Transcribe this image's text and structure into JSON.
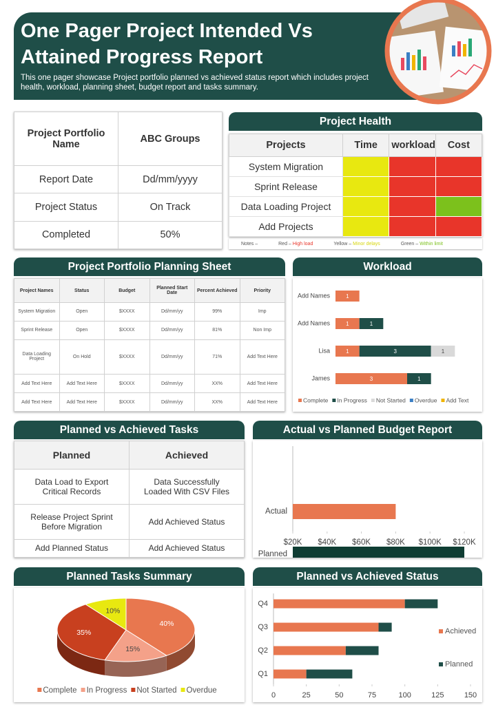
{
  "header": {
    "title": "One Pager Project Intended Vs Attained Progress Report",
    "subtitle": "This one pager showcase Project portfolio planned vs achieved status report which includes project health, workload, planning sheet, budget report and tasks summary."
  },
  "portfolio": {
    "rows": [
      [
        "Project Portfolio Name",
        "ABC Groups"
      ],
      [
        "Report Date",
        "Dd/mm/yyyy"
      ],
      [
        "Project Status",
        "On Track"
      ],
      [
        "Completed",
        "50%"
      ]
    ]
  },
  "health": {
    "title": "Project Health",
    "columns": [
      "Projects",
      "Time",
      "workload",
      "Cost"
    ],
    "rows": [
      {
        "project": "System Migration",
        "status": [
          "#e8e810",
          "#e8352a",
          "#e8352a"
        ]
      },
      {
        "project": "Sprint Release",
        "status": [
          "#e8e810",
          "#e8352a",
          "#e8352a"
        ]
      },
      {
        "project": "Data Loading Project",
        "status": [
          "#e8e810",
          "#e8352a",
          "#7cc11c"
        ]
      },
      {
        "project": "Add Projects",
        "status": [
          "#e8e810",
          "#e8352a",
          "#e8352a"
        ]
      }
    ],
    "notes": {
      "label": "Notes –",
      "items": [
        {
          "key": "Red –",
          "meaning": "High load",
          "color": "#e8352a"
        },
        {
          "key": "Yellow –",
          "meaning": "Minor delays",
          "color": "#d6d60a"
        },
        {
          "key": "Green –",
          "meaning": "Within limit",
          "color": "#7cc11c"
        }
      ]
    }
  },
  "planning": {
    "title": "Project Portfolio Planning Sheet",
    "columns": [
      "Project Names",
      "Status",
      "Budget",
      "Planned Start Date",
      "Percent Achieved",
      "Priority"
    ],
    "rows": [
      [
        "System Migration",
        "Open",
        "$XXXX",
        "Dd/mm/yy",
        "99%",
        "Imp"
      ],
      [
        "Sprint Release",
        "Open",
        "$XXXX",
        "Dd/mm/yy",
        "81%",
        "Non Imp"
      ],
      [
        "Data Loading Project",
        "On Hold",
        "$XXXX",
        "Dd/mm/yy",
        "71%",
        "Add Text Here"
      ],
      [
        "Add Text Here",
        "Add Text Here",
        "$XXXX",
        "Dd/mm/yy",
        "XX%",
        "Add Text Here"
      ],
      [
        "Add Text Here",
        "Add Text Here",
        "$XXXX",
        "Dd/mm/yy",
        "XX%",
        "Add Text Here"
      ]
    ]
  },
  "tasks": {
    "title": "Planned vs Achieved Tasks",
    "columns": [
      "Planned",
      "Achieved"
    ],
    "rows": [
      [
        "Data Load to Export Critical Records",
        "Data Successfully Loaded With CSV Files"
      ],
      [
        "Release Project Sprint Before Migration",
        "Add Achieved Status"
      ],
      [
        "Add Planned Status",
        "Add Achieved Status"
      ]
    ]
  },
  "chart_data": [
    {
      "type": "bar",
      "orientation": "horizontal",
      "stacked": true,
      "title": "Workload",
      "categories": [
        "James",
        "Lisa",
        "Add Names",
        "Add Names"
      ],
      "series": [
        {
          "name": "Complete",
          "color": "#e8774f",
          "values": [
            3,
            1,
            1,
            1
          ]
        },
        {
          "name": "In Progress",
          "color": "#1f4e48",
          "values": [
            1,
            3,
            1,
            null
          ]
        },
        {
          "name": "Not Started",
          "color": "#d9d9d9",
          "values": [
            null,
            1,
            null,
            null
          ]
        },
        {
          "name": "Overdue",
          "color": "#3b7fc4",
          "values": [
            null,
            null,
            null,
            null
          ]
        },
        {
          "name": "Add Text",
          "color": "#f0b400",
          "values": [
            null,
            null,
            null,
            null
          ]
        }
      ],
      "xlim": [
        0,
        6
      ],
      "legend": "bottom"
    },
    {
      "type": "bar",
      "orientation": "horizontal",
      "title": "Actual vs Planned Budget Report",
      "categories": [
        "Actual",
        "Planned"
      ],
      "values": [
        80000,
        120000
      ],
      "colors": [
        "#e8774f",
        "#0f3d33"
      ],
      "xlim": [
        20000,
        120000
      ],
      "xticks": [
        {
          "value": 20000,
          "label": "$20K"
        },
        {
          "value": 40000,
          "label": "$40K"
        },
        {
          "value": 60000,
          "label": "$60K"
        },
        {
          "value": 80000,
          "label": "$80K"
        },
        {
          "value": 100000,
          "label": "$100K"
        },
        {
          "value": 120000,
          "label": "$120K"
        }
      ]
    },
    {
      "type": "pie",
      "title": "Planned Tasks Summary",
      "categories": [
        "Complete",
        "In Progress",
        "Not Started",
        "Overdue"
      ],
      "values": [
        40,
        15,
        35,
        10
      ],
      "value_labels": [
        "40%",
        "15%",
        "35%",
        "10%"
      ],
      "colors": [
        "#e8774f",
        "#f4a189",
        "#c8401f",
        "#e8e810"
      ],
      "legend": "bottom"
    },
    {
      "type": "bar",
      "orientation": "horizontal",
      "stacked": true,
      "title": "Planned vs Achieved Status",
      "categories": [
        "Q1",
        "Q2",
        "Q3",
        "Q4"
      ],
      "series": [
        {
          "name": "Achieved",
          "color": "#e8774f",
          "values": [
            25,
            55,
            80,
            100
          ]
        },
        {
          "name": "Planned",
          "color": "#1f4e48",
          "values": [
            35,
            25,
            10,
            25
          ]
        }
      ],
      "xlim": [
        0,
        150
      ],
      "xticks": [
        0,
        25,
        50,
        75,
        100,
        125,
        150
      ],
      "legend": "right"
    }
  ]
}
